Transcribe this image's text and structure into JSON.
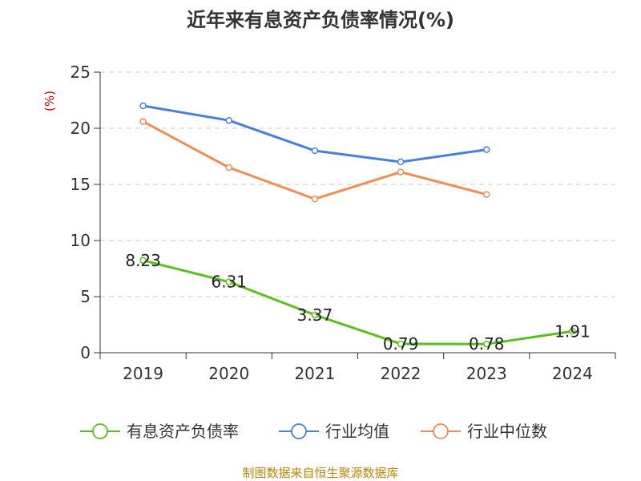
{
  "chart_data": {
    "type": "line",
    "title": "近年来有息资产负债率情况(%)",
    "ylabel": "(%)",
    "xlabel": "",
    "ylim": [
      0,
      25
    ],
    "yticks": [
      "0",
      "5",
      "10",
      "15",
      "20",
      "25"
    ],
    "ytick_values": [
      0,
      5,
      10,
      15,
      20,
      25
    ],
    "categories": [
      "2019",
      "2020",
      "2021",
      "2022",
      "2023",
      "2024"
    ],
    "grid": true,
    "legend_position": "bottom",
    "series": [
      {
        "name": "有息资产负债率",
        "color": "#5dbf1e",
        "values": [
          8.23,
          6.31,
          3.37,
          0.79,
          0.78,
          1.91
        ],
        "labels": [
          "8.23",
          "6.31",
          "3.37",
          "0.79",
          "0.78",
          "1.91"
        ]
      },
      {
        "name": "行业均值",
        "color": "#4a80d9",
        "values": [
          22.0,
          20.7,
          18.0,
          17.0,
          18.1,
          null
        ]
      },
      {
        "name": "行业中位数",
        "color": "#f28c55",
        "values": [
          20.6,
          16.5,
          13.7,
          16.1,
          14.1,
          null
        ]
      }
    ],
    "source": "制图数据来自恒生聚源数据库"
  }
}
